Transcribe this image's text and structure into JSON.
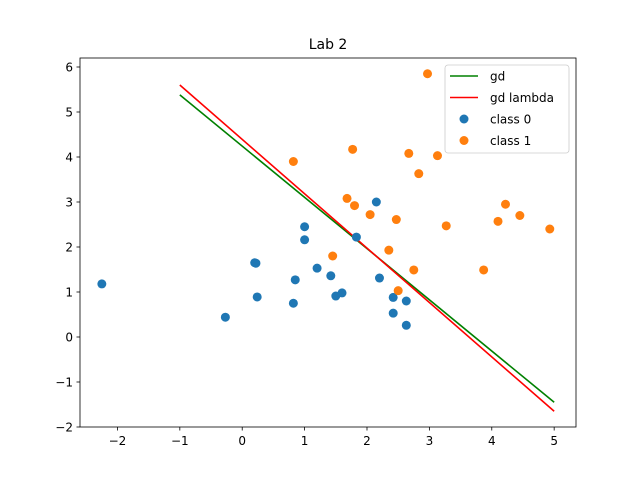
{
  "chart_data": {
    "type": "scatter",
    "title": "Lab 2",
    "xlabel": "",
    "ylabel": "",
    "xlim": [
      -2.6,
      5.35
    ],
    "ylim": [
      -2.0,
      6.2
    ],
    "xticks": [
      -2,
      -1,
      0,
      1,
      2,
      3,
      4,
      5
    ],
    "yticks": [
      -2,
      -1,
      0,
      1,
      2,
      3,
      4,
      5,
      6
    ],
    "grid": false,
    "legend_position": "top-right",
    "lines": [
      {
        "name": "gd",
        "color": "#008000",
        "x": [
          -1,
          5
        ],
        "y": [
          5.38,
          -1.45
        ]
      },
      {
        "name": "gd lambda",
        "color": "#ff0000",
        "x": [
          -1,
          5
        ],
        "y": [
          5.6,
          -1.65
        ]
      }
    ],
    "series": [
      {
        "name": "class 0",
        "color": "#1f77b4",
        "points": [
          [
            -2.25,
            1.18
          ],
          [
            -0.27,
            0.44
          ],
          [
            0.2,
            1.65
          ],
          [
            0.22,
            1.64
          ],
          [
            0.24,
            0.89
          ],
          [
            0.82,
            0.75
          ],
          [
            0.85,
            1.27
          ],
          [
            1.0,
            2.45
          ],
          [
            1.0,
            2.16
          ],
          [
            1.2,
            1.53
          ],
          [
            1.42,
            1.36
          ],
          [
            1.5,
            0.91
          ],
          [
            1.6,
            0.98
          ],
          [
            1.83,
            2.22
          ],
          [
            2.15,
            3.0
          ],
          [
            2.2,
            1.31
          ],
          [
            2.42,
            0.88
          ],
          [
            2.42,
            0.53
          ],
          [
            2.63,
            0.8
          ],
          [
            2.63,
            0.26
          ]
        ]
      },
      {
        "name": "class 1",
        "color": "#ff7f0e",
        "points": [
          [
            0.82,
            3.9
          ],
          [
            1.45,
            1.8
          ],
          [
            1.68,
            3.08
          ],
          [
            1.77,
            4.17
          ],
          [
            1.8,
            2.92
          ],
          [
            2.05,
            2.72
          ],
          [
            2.35,
            1.93
          ],
          [
            2.47,
            2.61
          ],
          [
            2.5,
            1.03
          ],
          [
            2.67,
            4.08
          ],
          [
            2.75,
            1.49
          ],
          [
            2.83,
            3.63
          ],
          [
            2.97,
            5.85
          ],
          [
            3.13,
            4.03
          ],
          [
            3.27,
            2.47
          ],
          [
            3.87,
            1.49
          ],
          [
            4.1,
            2.57
          ],
          [
            4.22,
            2.95
          ],
          [
            4.45,
            2.7
          ],
          [
            4.93,
            2.4
          ]
        ]
      }
    ]
  }
}
